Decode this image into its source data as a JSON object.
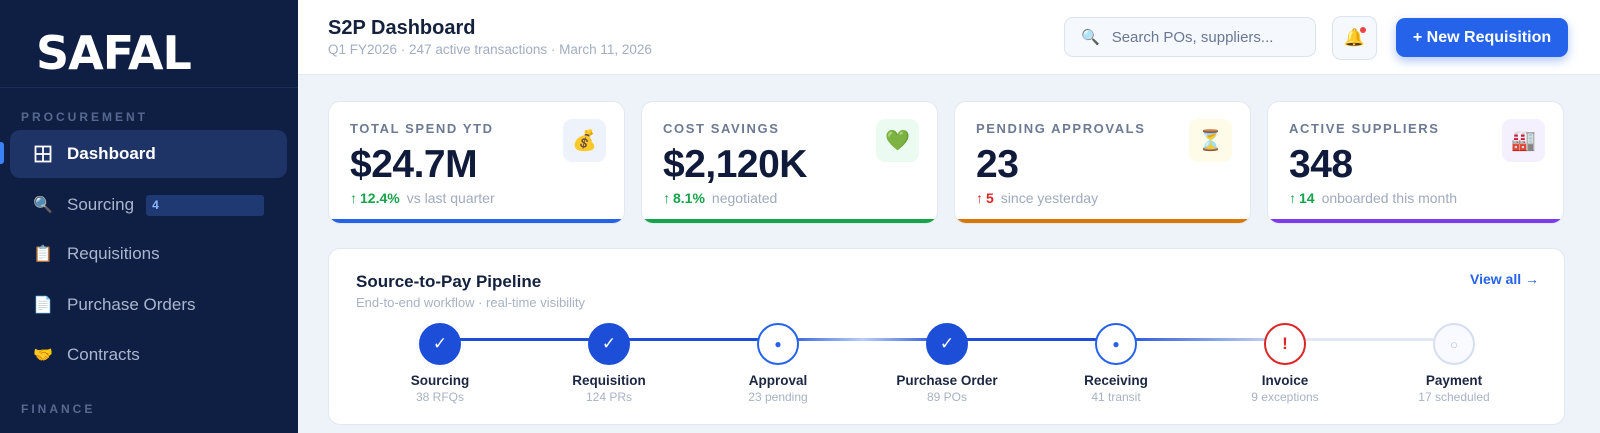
{
  "sidebar": {
    "logo": "SAFAL",
    "sections": {
      "procurement": "PROCUREMENT",
      "finance": "FINANCE"
    },
    "items": [
      {
        "label": "Dashboard",
        "icon": "grid-icon",
        "active": true
      },
      {
        "label": "Sourcing",
        "icon": "magnifier-icon",
        "badge": "4"
      },
      {
        "label": "Requisitions",
        "icon": "clipboard-icon"
      },
      {
        "label": "Purchase Orders",
        "icon": "document-icon"
      },
      {
        "label": "Contracts",
        "icon": "handshake-icon"
      }
    ]
  },
  "header": {
    "title": "S2P Dashboard",
    "subtitle": "Q1 FY2026 · 247 active transactions · March 11, 2026",
    "search_placeholder": "Search POs, suppliers...",
    "new_button": "+ New Requisition"
  },
  "kpis": [
    {
      "label": "TOTAL SPEND YTD",
      "value": "$24.7M",
      "delta": "12.4%",
      "direction": "up",
      "delta_color": "#16a34a",
      "note": "vs last quarter",
      "icon": "money-bag-icon",
      "accent": "#2563eb",
      "badge_bg": "#eef3fb"
    },
    {
      "label": "COST SAVINGS",
      "value": "$2,120K",
      "delta": "8.1%",
      "direction": "up",
      "delta_color": "#16a34a",
      "note": "negotiated",
      "icon": "heart-icon",
      "accent": "#16a34a",
      "badge_bg": "#ecfbf1"
    },
    {
      "label": "PENDING APPROVALS",
      "value": "23",
      "delta": "5",
      "direction": "up",
      "delta_color": "#dc2626",
      "note": "since yesterday",
      "icon": "hourglass-icon",
      "accent": "#d97706",
      "badge_bg": "#fefbe8"
    },
    {
      "label": "ACTIVE SUPPLIERS",
      "value": "348",
      "delta": "14",
      "direction": "up",
      "delta_color": "#16a34a",
      "note": "onboarded this month",
      "icon": "factory-icon",
      "accent": "#7c3aed",
      "badge_bg": "#f4f0fd"
    }
  ],
  "pipeline": {
    "title": "Source-to-Pay Pipeline",
    "subtitle": "End-to-end workflow · real-time visibility",
    "view_all": "View all →",
    "stages": [
      {
        "name": "Sourcing",
        "meta": "38 RFQs",
        "status": "done"
      },
      {
        "name": "Requisition",
        "meta": "124 PRs",
        "status": "done"
      },
      {
        "name": "Approval",
        "meta": "23 pending",
        "status": "active"
      },
      {
        "name": "Purchase Order",
        "meta": "89 POs",
        "status": "done"
      },
      {
        "name": "Receiving",
        "meta": "41 transit",
        "status": "active"
      },
      {
        "name": "Invoice",
        "meta": "9 exceptions",
        "status": "error"
      },
      {
        "name": "Payment",
        "meta": "17 scheduled",
        "status": "pending"
      }
    ]
  },
  "colors": {
    "sidebar_bg": "#0f1f44",
    "primary": "#2563eb",
    "done": "#1d4ed8",
    "error": "#dc2626"
  }
}
